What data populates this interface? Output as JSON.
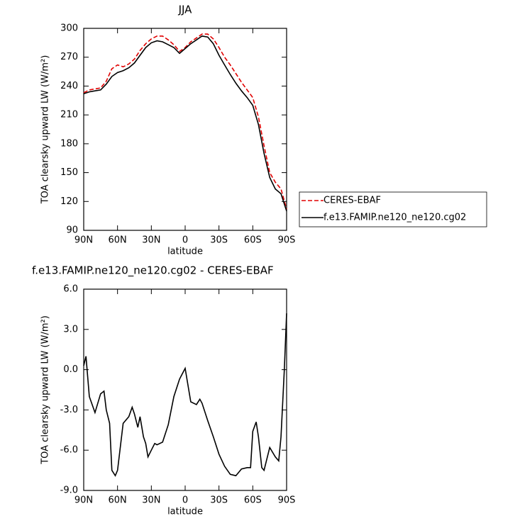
{
  "chart_data": [
    {
      "type": "line",
      "title": "JJA",
      "x_label": "latitude",
      "y_label": "TOA clearsky upward LW (W/m²)",
      "x": [
        90,
        85,
        80,
        75,
        70,
        65,
        60,
        55,
        50,
        45,
        40,
        35,
        30,
        25,
        20,
        15,
        10,
        5,
        0,
        -5,
        -10,
        -15,
        -20,
        -25,
        -30,
        -35,
        -40,
        -45,
        -50,
        -55,
        -60,
        -65,
        -70,
        -75,
        -80,
        -85,
        -90
      ],
      "xlim": [
        90,
        -90
      ],
      "xticks": [
        {
          "value": 90,
          "label": "90N"
        },
        {
          "value": 60,
          "label": "60N"
        },
        {
          "value": 30,
          "label": "30N"
        },
        0,
        {
          "value": -30,
          "label": "30S"
        },
        {
          "value": -60,
          "label": "60S"
        },
        {
          "value": -90,
          "label": "90S"
        }
      ],
      "ylim": [
        90,
        300
      ],
      "yticks": [
        90,
        120,
        150,
        180,
        210,
        240,
        270,
        300
      ],
      "legend": "right",
      "series": [
        {
          "name": "CERES-EBAF",
          "color": "#e00000",
          "dashed": true,
          "values": [
            233,
            236,
            237,
            238,
            245,
            258,
            262,
            260,
            263,
            268,
            277,
            284,
            289,
            292,
            292,
            288,
            283,
            276,
            280,
            286,
            290,
            294,
            294,
            289,
            280,
            270,
            262,
            253,
            244,
            236,
            228,
            208,
            178,
            150,
            140,
            133,
            112
          ]
        },
        {
          "name": "f.e13.FAMIP.ne120_ne120.cg02",
          "color": "#000000",
          "dashed": false,
          "values": [
            232,
            234,
            235,
            236,
            242,
            250,
            254,
            256,
            259,
            264,
            272,
            280,
            285,
            287,
            286,
            283,
            280,
            274,
            279,
            284,
            288,
            292,
            291,
            284,
            272,
            262,
            252,
            243,
            235,
            228,
            220,
            200,
            170,
            145,
            133,
            128,
            110
          ]
        }
      ]
    },
    {
      "type": "line",
      "title": "f.e13.FAMIP.ne120_ne120.cg02 - CERES-EBAF",
      "x_label": "latitude",
      "y_label": "TOA clearsky upward LW (W/m²)",
      "x": [
        90,
        88,
        85,
        80,
        75,
        72,
        70,
        67,
        65,
        62,
        60,
        55,
        50,
        47,
        45,
        42,
        40,
        37,
        35,
        33,
        30,
        27,
        25,
        20,
        15,
        10,
        5,
        0,
        -5,
        -10,
        -13,
        -15,
        -20,
        -25,
        -30,
        -35,
        -40,
        -45,
        -50,
        -55,
        -58,
        -60,
        -63,
        -65,
        -68,
        -70,
        -75,
        -80,
        -83,
        -85,
        -88,
        -90
      ],
      "xlim": [
        90,
        -90
      ],
      "xticks": [
        {
          "value": 90,
          "label": "90N"
        },
        {
          "value": 60,
          "label": "60N"
        },
        {
          "value": 30,
          "label": "30N"
        },
        0,
        {
          "value": -30,
          "label": "30S"
        },
        {
          "value": -60,
          "label": "60S"
        },
        {
          "value": -90,
          "label": "90S"
        }
      ],
      "ylim": [
        -9,
        6
      ],
      "yticks": [
        {
          "value": -9,
          "label": "-9.0"
        },
        {
          "value": -6,
          "label": "-6.0"
        },
        {
          "value": -3,
          "label": "-3.0"
        },
        {
          "value": 0,
          "label": "0.0"
        },
        {
          "value": 3,
          "label": "3.0"
        },
        {
          "value": 6,
          "label": "6.0"
        }
      ],
      "series": [
        {
          "name": null,
          "color": "#000000",
          "dashed": false,
          "values": [
            0.3,
            1.0,
            -2.0,
            -3.2,
            -1.8,
            -1.6,
            -3.0,
            -4.0,
            -7.5,
            -7.9,
            -7.5,
            -4.0,
            -3.5,
            -2.8,
            -3.3,
            -4.3,
            -3.5,
            -5.0,
            -5.5,
            -6.5,
            -6.0,
            -5.5,
            -5.6,
            -5.4,
            -4.1,
            -2.0,
            -0.7,
            0.1,
            -2.4,
            -2.6,
            -2.2,
            -2.5,
            -3.8,
            -5.0,
            -6.3,
            -7.2,
            -7.8,
            -7.9,
            -7.4,
            -7.3,
            -7.3,
            -4.6,
            -3.9,
            -5.0,
            -7.3,
            -7.5,
            -5.8,
            -6.5,
            -6.8,
            -5.0,
            0.0,
            4.2
          ]
        }
      ]
    }
  ]
}
